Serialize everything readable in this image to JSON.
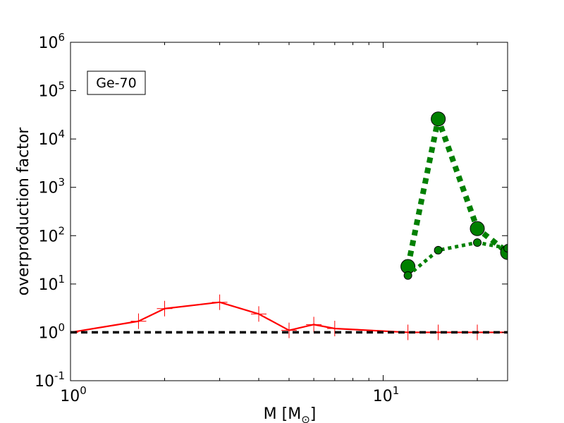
{
  "chart_data": {
    "type": "line",
    "title": "",
    "annotation": "Ge-70",
    "xlabel": "M [M",
    "xlabel_sub": "⊙",
    "xlabel_close": "]",
    "ylabel": "overproduction factor",
    "x_scale": "log",
    "y_scale": "log",
    "xlim": [
      1,
      25
    ],
    "ylim": [
      0.1,
      1000000
    ],
    "x_ticks": [
      {
        "value": 1,
        "base": "10",
        "exp": "0"
      },
      {
        "value": 10,
        "base": "10",
        "exp": "1"
      }
    ],
    "y_ticks": [
      {
        "value": 0.1,
        "base": "10",
        "exp": "-1"
      },
      {
        "value": 1,
        "base": "10",
        "exp": "0"
      },
      {
        "value": 10,
        "base": "10",
        "exp": "1"
      },
      {
        "value": 100,
        "base": "10",
        "exp": "2"
      },
      {
        "value": 1000,
        "base": "10",
        "exp": "3"
      },
      {
        "value": 10000,
        "base": "10",
        "exp": "4"
      },
      {
        "value": 100000,
        "base": "10",
        "exp": "5"
      },
      {
        "value": 1000000,
        "base": "10",
        "exp": "6"
      }
    ],
    "grid": false,
    "series": [
      {
        "color": "#ff0000",
        "style": "solid",
        "marker": "plus",
        "x": [
          1,
          1.65,
          2,
          3,
          4,
          5,
          6,
          7,
          12,
          15,
          20,
          25
        ],
        "y": [
          1.0,
          1.7,
          3.1,
          4.2,
          2.4,
          1.1,
          1.45,
          1.2,
          1.0,
          1.0,
          1.0,
          1.0
        ]
      },
      {
        "color": "#008000",
        "style": "dotted-thick",
        "marker": "circle-large",
        "x": [
          12,
          15,
          20,
          25
        ],
        "y": [
          23,
          26000,
          140,
          45
        ]
      },
      {
        "color": "#008000",
        "style": "dotted",
        "marker": "circle-small",
        "x": [
          12,
          15,
          20,
          25
        ],
        "y": [
          15,
          50,
          72,
          55
        ]
      },
      {
        "color": "#000000",
        "style": "dashed",
        "marker": "none",
        "x": [
          1,
          25
        ],
        "y": [
          1,
          1
        ]
      }
    ]
  }
}
